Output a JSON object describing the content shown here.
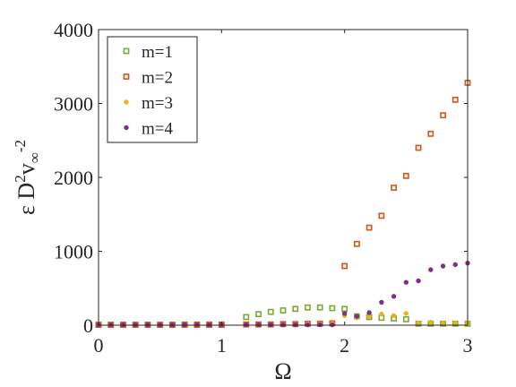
{
  "chart_data": {
    "type": "scatter",
    "title": "",
    "xlabel": "Ω",
    "ylabel": "ε D",
    "ylabel_sup": "2",
    "ylabel_v": "v",
    "ylabel_sub": "∞",
    "ylabel_exp": "-2",
    "xlim": [
      0,
      3
    ],
    "ylim": [
      0,
      4000
    ],
    "xticks": [
      0,
      1,
      2,
      3
    ],
    "xtick_labels": [
      "0",
      "1",
      "2",
      "3"
    ],
    "yticks": [
      0,
      1000,
      2000,
      3000,
      4000
    ],
    "ytick_labels": [
      "0",
      "1000",
      "2000",
      "3000",
      "4000"
    ],
    "grid": false,
    "legend_position": "top-left",
    "series": [
      {
        "name": "m=1",
        "marker": "square",
        "color": "#77AC30",
        "x": [
          0,
          0.1,
          0.2,
          0.3,
          0.4,
          0.5,
          0.6,
          0.7,
          0.8,
          0.9,
          1.0,
          1.2,
          1.3,
          1.4,
          1.5,
          1.6,
          1.7,
          1.8,
          1.9,
          2.0,
          2.1,
          2.2,
          2.3,
          2.4,
          2.5,
          2.6,
          2.7,
          2.8,
          2.9,
          3.0
        ],
        "y": [
          5,
          5,
          5,
          5,
          5,
          5,
          5,
          10,
          10,
          10,
          10,
          110,
          150,
          180,
          200,
          220,
          240,
          240,
          230,
          220,
          120,
          110,
          100,
          90,
          80,
          20,
          20,
          20,
          20,
          20
        ]
      },
      {
        "name": "m=2",
        "marker": "square",
        "color": "#D95319",
        "x": [
          0,
          0.1,
          0.2,
          0.3,
          0.4,
          0.5,
          0.6,
          0.7,
          0.8,
          0.9,
          1.0,
          1.2,
          1.3,
          1.4,
          1.5,
          1.6,
          1.7,
          1.8,
          1.9,
          2.0,
          2.1,
          2.2,
          2.3,
          2.4,
          2.5,
          2.6,
          2.7,
          2.8,
          2.9,
          3.0
        ],
        "y": [
          5,
          5,
          5,
          5,
          5,
          5,
          5,
          5,
          5,
          5,
          5,
          10,
          10,
          10,
          15,
          15,
          20,
          20,
          25,
          800,
          1100,
          1320,
          1480,
          1860,
          2020,
          2400,
          2590,
          2840,
          3050,
          3280
        ]
      },
      {
        "name": "m=3",
        "marker": "circle",
        "color": "#EDB120",
        "x": [
          0,
          0.1,
          0.2,
          0.3,
          0.4,
          0.5,
          0.6,
          0.7,
          0.8,
          0.9,
          1.0,
          1.2,
          1.3,
          1.4,
          1.5,
          1.6,
          1.7,
          1.8,
          1.9,
          2.0,
          2.1,
          2.2,
          2.3,
          2.4,
          2.5,
          2.6,
          2.7,
          2.8,
          2.9,
          3.0
        ],
        "y": [
          5,
          5,
          5,
          5,
          5,
          5,
          5,
          5,
          5,
          5,
          5,
          5,
          5,
          5,
          5,
          5,
          5,
          10,
          20,
          130,
          100,
          120,
          150,
          130,
          160,
          30,
          40,
          30,
          30,
          30
        ]
      },
      {
        "name": "m=4",
        "marker": "circle",
        "color": "#7E2F8E",
        "x": [
          0,
          0.1,
          0.2,
          0.3,
          0.4,
          0.5,
          0.6,
          0.7,
          0.8,
          0.9,
          1.0,
          1.2,
          1.3,
          1.4,
          1.5,
          1.6,
          1.7,
          1.8,
          1.9,
          2.0,
          2.1,
          2.2,
          2.3,
          2.4,
          2.5,
          2.6,
          2.7,
          2.8,
          2.9,
          3.0
        ],
        "y": [
          5,
          5,
          5,
          5,
          5,
          5,
          5,
          5,
          5,
          5,
          5,
          5,
          5,
          5,
          5,
          5,
          5,
          5,
          5,
          160,
          120,
          170,
          310,
          390,
          580,
          600,
          750,
          800,
          820,
          840
        ]
      }
    ]
  }
}
